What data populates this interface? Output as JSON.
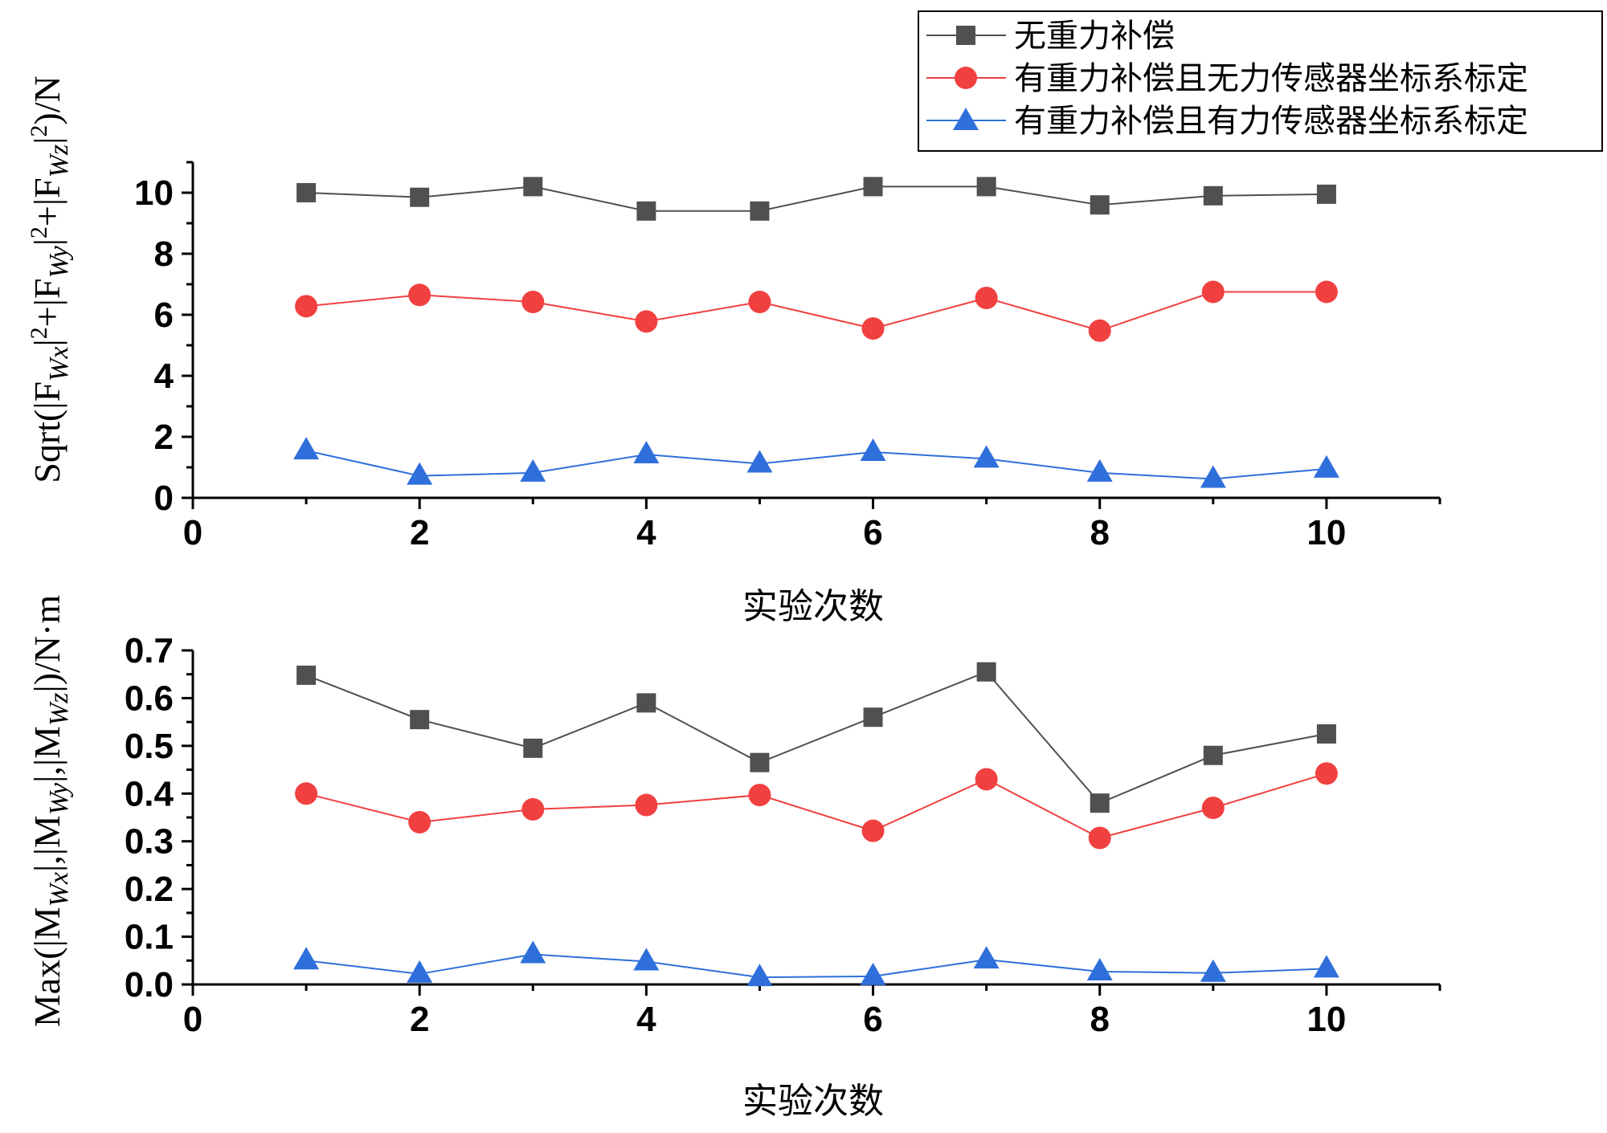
{
  "legend": {
    "items": [
      {
        "label": "无重力补偿",
        "color": "#505050",
        "marker": "square"
      },
      {
        "label": "有重力补偿且无力传感器坐标系标定",
        "color": "#f04040",
        "marker": "circle"
      },
      {
        "label": "有重力补偿且有力传感器坐标系标定",
        "color": "#2f6fdb",
        "marker": "triangle"
      }
    ]
  },
  "chart_data": [
    {
      "type": "line",
      "xlabel": "实验次数",
      "ylabel_parts": {
        "lead": "Sqrt(|F",
        "sub1": "Wx",
        "mid1": "|",
        "sup1": "2",
        "plus1": "+|F",
        "sub2": "Wy",
        "mid2": "|",
        "sup2": "2",
        "plus2": "+|F",
        "sub3": "Wz",
        "mid3": "|",
        "sup3": "2",
        "tail": ")/N"
      },
      "xlim": [
        0,
        11
      ],
      "ylim": [
        0,
        11
      ],
      "xticks": [
        "0",
        "2",
        "4",
        "6",
        "8",
        "10"
      ],
      "yticks": [
        "0",
        "2",
        "4",
        "6",
        "8",
        "10"
      ],
      "x": [
        1,
        2,
        3,
        4,
        5,
        6,
        7,
        8,
        9,
        10
      ],
      "series": [
        {
          "values": [
            10.0,
            9.85,
            10.2,
            9.4,
            9.4,
            10.2,
            10.2,
            9.6,
            9.9,
            9.95
          ]
        },
        {
          "values": [
            6.28,
            6.65,
            6.42,
            5.78,
            6.42,
            5.55,
            6.55,
            5.48,
            6.75,
            6.75
          ]
        },
        {
          "values": [
            1.55,
            0.72,
            0.82,
            1.42,
            1.12,
            1.5,
            1.28,
            0.82,
            0.62,
            0.95
          ]
        }
      ]
    },
    {
      "type": "line",
      "xlabel": "实验次数",
      "ylabel_parts": {
        "lead": "Max(|M",
        "sub1": "Wx",
        "mid1": "|,|M",
        "sub2": "Wy",
        "mid2": "|,|M",
        "sub3": "Wz",
        "tail": "|)/N·m"
      },
      "xlim": [
        0,
        11
      ],
      "ylim": [
        0,
        0.7
      ],
      "xticks": [
        "0",
        "2",
        "4",
        "6",
        "8",
        "10"
      ],
      "yticks": [
        "0.0",
        "0.1",
        "0.2",
        "0.3",
        "0.4",
        "0.5",
        "0.6",
        "0.7"
      ],
      "x": [
        1,
        2,
        3,
        4,
        5,
        6,
        7,
        8,
        9,
        10
      ],
      "series": [
        {
          "values": [
            0.648,
            0.555,
            0.495,
            0.59,
            0.465,
            0.56,
            0.655,
            0.38,
            0.48,
            0.525
          ]
        },
        {
          "values": [
            0.4,
            0.34,
            0.367,
            0.376,
            0.397,
            0.322,
            0.43,
            0.307,
            0.37,
            0.442
          ]
        },
        {
          "values": [
            0.05,
            0.022,
            0.063,
            0.048,
            0.015,
            0.017,
            0.052,
            0.027,
            0.024,
            0.033
          ]
        }
      ]
    }
  ]
}
